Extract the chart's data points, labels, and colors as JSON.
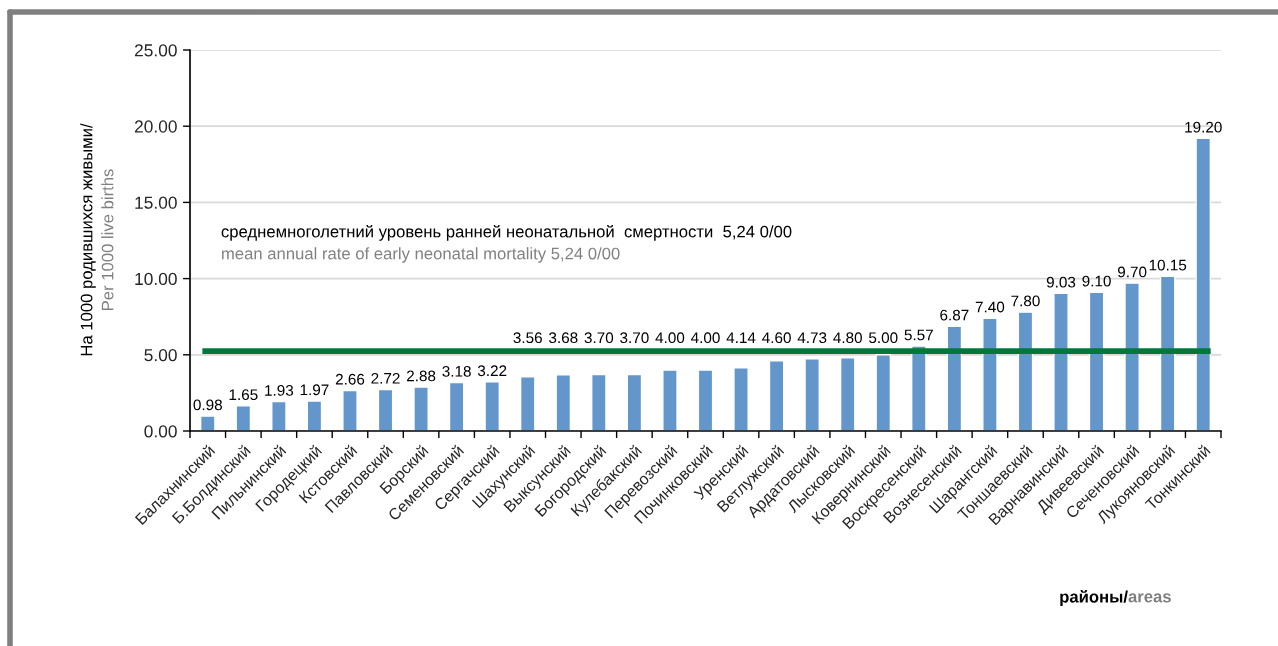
{
  "chart_data": {
    "type": "bar",
    "xlabel": "районы/areas",
    "ylabel": "На 1000 родившихся живыми/\nPer 1000 live births",
    "categories": [
      "Балахнинский",
      "Б.Болдинский",
      "Пильнинский",
      "Городецкий",
      "Кстовский",
      "Павловский",
      "Борский",
      "Семеновский",
      "Сергачский",
      "Шахунский",
      "Выксунский",
      "Богородский",
      "Кулебакский",
      "Перевозский",
      "Починковский",
      "Уренский",
      "Ветлужский",
      "Ардатовский",
      "Лысковский",
      "Ковернинский",
      "Воскресенский",
      "Вознесенский",
      "Шарангский",
      "Тоншаевский",
      "Варнавинский",
      "Дивеевский",
      "Сеченовский",
      "Лукояновский",
      "Тонкинский"
    ],
    "values": [
      0.98,
      1.65,
      1.93,
      1.97,
      2.66,
      2.72,
      2.88,
      3.18,
      3.22,
      3.56,
      3.68,
      3.7,
      3.7,
      4.0,
      4.0,
      4.14,
      4.6,
      4.73,
      4.8,
      5.0,
      5.57,
      6.87,
      7.4,
      7.8,
      9.03,
      9.1,
      9.7,
      10.15,
      19.2
    ],
    "value_labels": [
      "0.98",
      "1.65",
      "1.93",
      "1.97",
      "2.66",
      "2.72",
      "2.88",
      "3.18",
      "3.22",
      "3.56",
      "3.68",
      "3.70",
      "3.70",
      "4.00",
      "4.00",
      "4.14",
      "4.60",
      "4.73",
      "4.80",
      "5.00",
      "5.57",
      "6.87",
      "7.40",
      "7.80",
      "9.03",
      "9.10",
      "9.70",
      "10.15",
      "19.20"
    ],
    "color": "#6397cb",
    "ylim": [
      0,
      25
    ],
    "yticks": [
      {
        "value": 0,
        "label": "0.00"
      },
      {
        "value": 5,
        "label": "5.00"
      },
      {
        "value": 10,
        "label": "10.00"
      },
      {
        "value": 15,
        "label": "15.00"
      },
      {
        "value": 20,
        "label": "20.00"
      },
      {
        "value": 25,
        "label": "25.00"
      }
    ],
    "grid": "y",
    "ref_lines": [
      {
        "axis": "y",
        "value": 5.24,
        "color": "#00783c"
      }
    ],
    "annotations": [
      "среднемноголетний уровень ранней неонатальной  смертности  5,24 0/00",
      "mean annual rate of early neonatal mortality 5,24 0/00"
    ]
  }
}
